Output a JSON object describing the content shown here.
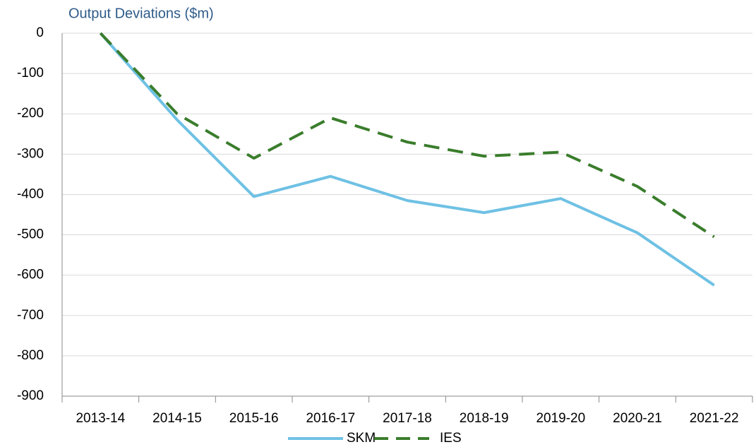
{
  "chart_data": {
    "type": "line",
    "title": "Output  Deviations ($m)",
    "categories": [
      "2013-14",
      "2014-15",
      "2015-16",
      "2016-17",
      "2017-18",
      "2018-19",
      "2019-20",
      "2020-21",
      "2021-22"
    ],
    "series": [
      {
        "name": "SKM",
        "color": "#6ec1e4",
        "dashed": false,
        "values": [
          0,
          -215,
          -405,
          -355,
          -415,
          -445,
          -410,
          -495,
          -625
        ]
      },
      {
        "name": "IES",
        "color": "#3a7d2c",
        "dashed": true,
        "values": [
          0,
          -200,
          -310,
          -210,
          -270,
          -305,
          -295,
          -380,
          -505
        ]
      }
    ],
    "ylim": [
      -900,
      0
    ],
    "yticks": [
      0,
      -100,
      -200,
      -300,
      -400,
      -500,
      -600,
      -700,
      -800,
      -900
    ],
    "grid": true,
    "legend": "bottom"
  }
}
